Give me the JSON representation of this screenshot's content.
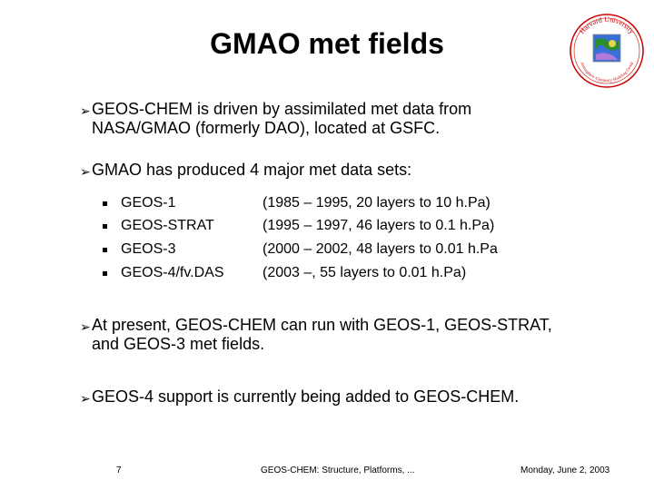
{
  "title": "GMAO met fields",
  "logo": {
    "top_text": "Harvard University",
    "bottom_text": "Atmospheric Chemistry Modeling Group",
    "accent_colors": [
      "#cc0000",
      "#2a8f2a",
      "#3b6fd8",
      "#b07ad8"
    ]
  },
  "bullets": [
    {
      "icon": "arrow-bullet-icon",
      "text": "GEOS-CHEM is driven by assimilated met data from NASA/GMAO (formerly DAO), located at GSFC."
    },
    {
      "icon": "arrow-bullet-icon",
      "text": "GMAO has produced 4 major met data sets:"
    },
    {
      "icon": "arrow-bullet-icon",
      "text": "At present, GEOS-CHEM can run with GEOS-1, GEOS-STRAT, and GEOS-3 met fields."
    },
    {
      "icon": "arrow-bullet-icon",
      "text": "GEOS-4 support is currently being added to GEOS-CHEM."
    }
  ],
  "datasets": [
    {
      "name": "GEOS-1",
      "detail": "(1985 – 1995, 20 layers to 10 h.Pa)"
    },
    {
      "name": "GEOS-STRAT",
      "detail": "(1995 – 1997, 46 layers to 0.1 h.Pa)"
    },
    {
      "name": "GEOS-3",
      "detail": "(2000 – 2002, 48 layers to 0.01 h.Pa"
    },
    {
      "name": "GEOS-4/fv.DAS",
      "detail": "(2003 –, 55 layers to 0.01 h.Pa)"
    }
  ],
  "footer": {
    "page_number": "7",
    "center_text": "GEOS-CHEM: Structure, Platforms, ...",
    "date": "Monday, June 2, 2003"
  }
}
